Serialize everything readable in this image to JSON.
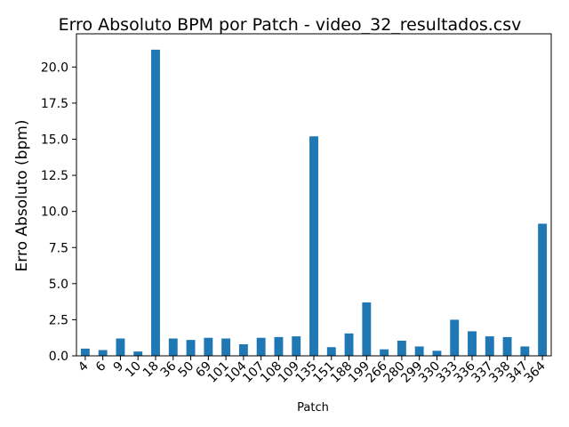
{
  "chart_data": {
    "type": "bar",
    "title": "Erro Absoluto BPM por Patch - video_32_resultados.csv",
    "xlabel": "Patch",
    "ylabel": "Erro Absoluto (bpm)",
    "ylim": [
      0,
      22.3
    ],
    "yticks": [
      0.0,
      2.5,
      5.0,
      7.5,
      10.0,
      12.5,
      15.0,
      17.5,
      20.0
    ],
    "ytick_labels": [
      "0.0",
      "2.5",
      "5.0",
      "7.5",
      "10.0",
      "12.5",
      "15.0",
      "17.5",
      "20.0"
    ],
    "grid": false,
    "bar_color": "#1f77b4",
    "categories": [
      "4",
      "6",
      "9",
      "10",
      "18",
      "36",
      "50",
      "69",
      "101",
      "104",
      "107",
      "108",
      "109",
      "135",
      "151",
      "188",
      "199",
      "266",
      "280",
      "299",
      "330",
      "333",
      "336",
      "337",
      "338",
      "347",
      "364"
    ],
    "values": [
      0.5,
      0.4,
      1.2,
      0.3,
      21.2,
      1.2,
      1.1,
      1.25,
      1.2,
      0.8,
      1.25,
      1.3,
      1.35,
      15.2,
      0.6,
      1.55,
      3.7,
      0.45,
      1.05,
      0.65,
      0.35,
      2.5,
      1.7,
      1.35,
      1.3,
      0.65,
      9.15
    ]
  }
}
